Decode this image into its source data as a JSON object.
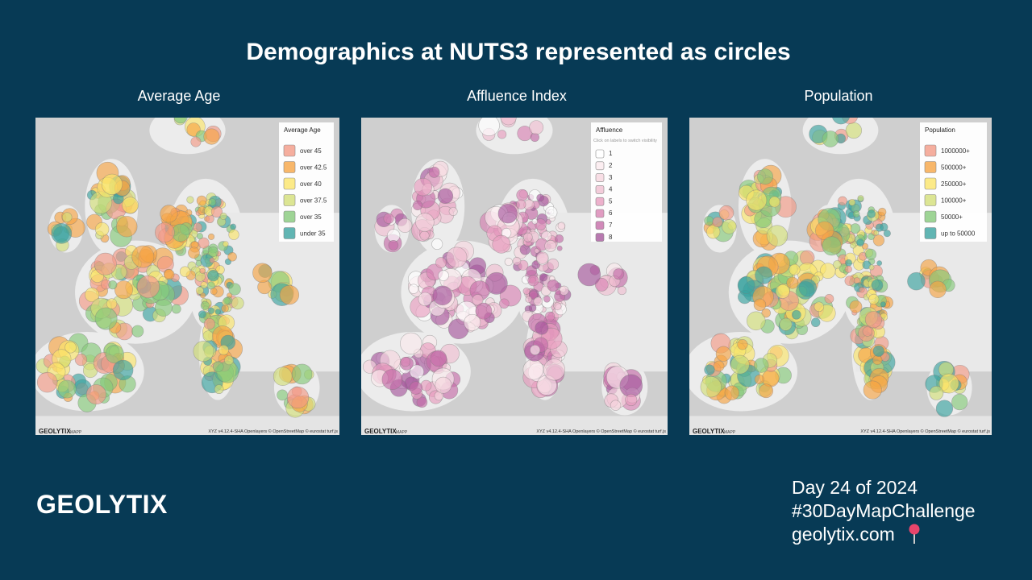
{
  "title": "Demographics at NUTS3 represented as circles",
  "panels": [
    {
      "heading": "Average Age",
      "legend": {
        "title": "Average Age",
        "items": [
          {
            "label": "over 45",
            "color": "#f29a86"
          },
          {
            "label": "over 42.5",
            "color": "#f6a545"
          },
          {
            "label": "over 40",
            "color": "#fbe56a"
          },
          {
            "label": "over 37.5",
            "color": "#d3df78"
          },
          {
            "label": "over 35",
            "color": "#86c97a"
          },
          {
            "label": "under 35",
            "color": "#3aa3a0"
          }
        ]
      },
      "logo": "GEOLYTIX",
      "logo_suffix": "MAPP",
      "attribution": "XYZ v4.12.4-SHA Openlayers © OpenStreetMap © eurostat turf.js"
    },
    {
      "heading": "Affluence Index",
      "legend": {
        "title": "Affluence",
        "hint": "Click on labels to switch visibility",
        "items": [
          {
            "label": "1",
            "color": "#ffffff"
          },
          {
            "label": "2",
            "color": "#fbeaed"
          },
          {
            "label": "3",
            "color": "#f6d6de"
          },
          {
            "label": "4",
            "color": "#f0bfd1"
          },
          {
            "label": "5",
            "color": "#e89dbf"
          },
          {
            "label": "6",
            "color": "#d983b3"
          },
          {
            "label": "7",
            "color": "#c56ca8"
          },
          {
            "label": "8",
            "color": "#a6589c"
          }
        ]
      },
      "logo": "GEOLYTIX",
      "logo_suffix": "MAPP",
      "attribution": "XYZ v4.12.4-SHA Openlayers © OpenStreetMap © eurostat turf.js"
    },
    {
      "heading": "Population",
      "legend": {
        "title": "Population",
        "items": [
          {
            "label": "1000000+",
            "color": "#f29a86"
          },
          {
            "label": "500000+",
            "color": "#f6a545"
          },
          {
            "label": "250000+",
            "color": "#fbe56a"
          },
          {
            "label": "100000+",
            "color": "#d3df78"
          },
          {
            "label": "50000+",
            "color": "#86c97a"
          },
          {
            "label": "up to 50000",
            "color": "#3aa3a0"
          }
        ]
      },
      "logo": "GEOLYTIX",
      "logo_suffix": "MAPP",
      "attribution": "XYZ v4.12.4-SHA Openlayers © OpenStreetMap © eurostat turf.js"
    }
  ],
  "footer": {
    "brand": "GEOLYTIX",
    "lines": [
      "Day 24 of 2024",
      "#30DayMapChallenge",
      "geolytix.com"
    ]
  }
}
